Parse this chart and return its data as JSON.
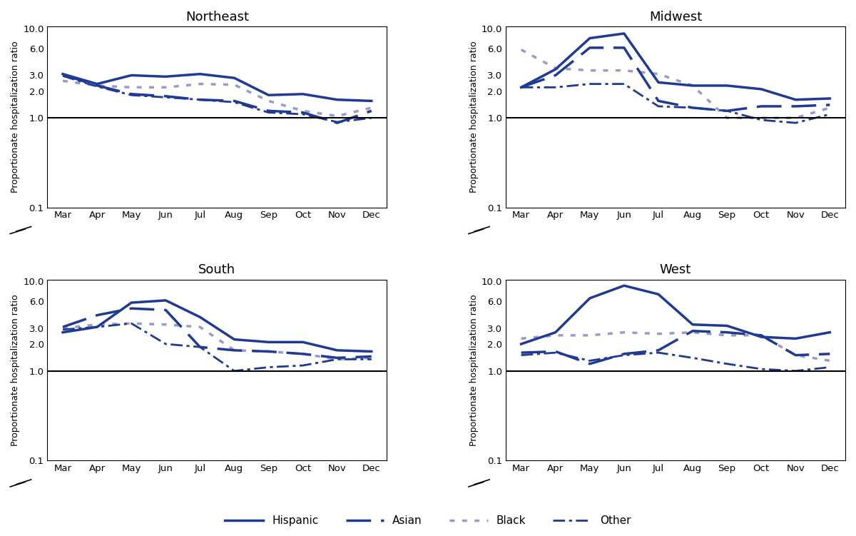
{
  "months": [
    "Mar",
    "Apr",
    "May",
    "Jun",
    "Jul",
    "Aug",
    "Sep",
    "Oct",
    "Nov",
    "Dec"
  ],
  "regions": [
    "Northeast",
    "Midwest",
    "South",
    "West"
  ],
  "dark_blue": "#1f3a93",
  "light_purple": "#9999cc",
  "data": {
    "Northeast": {
      "Hispanic": [
        3.1,
        2.4,
        3.0,
        2.9,
        3.1,
        2.8,
        1.8,
        1.85,
        1.6,
        1.55
      ],
      "Asian": [
        3.05,
        2.3,
        1.85,
        1.75,
        1.6,
        1.55,
        1.2,
        1.15,
        0.88,
        1.2
      ],
      "Black": [
        2.6,
        2.3,
        2.2,
        2.2,
        2.4,
        2.35,
        1.55,
        1.2,
        1.05,
        1.3
      ],
      "Other": [
        2.95,
        2.25,
        1.8,
        1.7,
        1.6,
        1.5,
        1.15,
        1.1,
        0.9,
        1.0
      ]
    },
    "Midwest": {
      "Hispanic": [
        2.2,
        3.5,
        7.8,
        8.8,
        2.5,
        2.3,
        2.3,
        2.1,
        1.6,
        1.65
      ],
      "Asian": [
        2.2,
        3.0,
        6.1,
        6.1,
        1.55,
        1.3,
        1.2,
        1.35,
        1.35,
        1.4
      ],
      "Black": [
        5.8,
        3.6,
        3.4,
        3.4,
        3.1,
        2.3,
        1.0,
        1.0,
        1.0,
        1.3
      ],
      "Other": [
        2.2,
        2.2,
        2.4,
        2.4,
        1.35,
        1.3,
        1.2,
        0.95,
        0.88,
        1.1
      ]
    },
    "South": {
      "Hispanic": [
        2.7,
        3.1,
        5.8,
        6.15,
        4.0,
        2.25,
        2.1,
        2.1,
        1.7,
        1.65
      ],
      "Asian": [
        3.1,
        4.2,
        5.0,
        4.8,
        1.85,
        1.7,
        1.65,
        1.55,
        1.4,
        1.45
      ],
      "Black": [
        3.0,
        3.3,
        3.4,
        3.3,
        3.1,
        1.7,
        1.65,
        1.55,
        1.35,
        1.4
      ],
      "Other": [
        2.9,
        3.1,
        3.4,
        2.0,
        1.85,
        1.0,
        1.1,
        1.15,
        1.35,
        1.35
      ]
    },
    "West": {
      "Hispanic": [
        2.0,
        2.7,
        6.5,
        9.0,
        7.2,
        3.3,
        3.2,
        2.4,
        2.3,
        2.7
      ],
      "Asian": [
        1.6,
        1.65,
        1.2,
        1.55,
        1.7,
        2.8,
        2.7,
        2.5,
        1.5,
        1.55
      ],
      "Black": [
        2.3,
        2.5,
        2.5,
        2.7,
        2.6,
        2.7,
        2.5,
        2.5,
        1.5,
        1.3
      ],
      "Other": [
        1.5,
        1.6,
        1.3,
        1.5,
        1.6,
        1.4,
        1.2,
        1.05,
        1.0,
        1.1
      ]
    }
  },
  "ytick_vals": [
    0.1,
    1.0,
    2.0,
    3.0,
    6.0,
    10.0
  ],
  "ytick_labels": [
    "0.1",
    "1.0",
    "2.0",
    "3.0",
    "6.0",
    "10.0"
  ],
  "ylabel": "Proportionate hospitalization ratio",
  "bg_color": "#ffffff"
}
